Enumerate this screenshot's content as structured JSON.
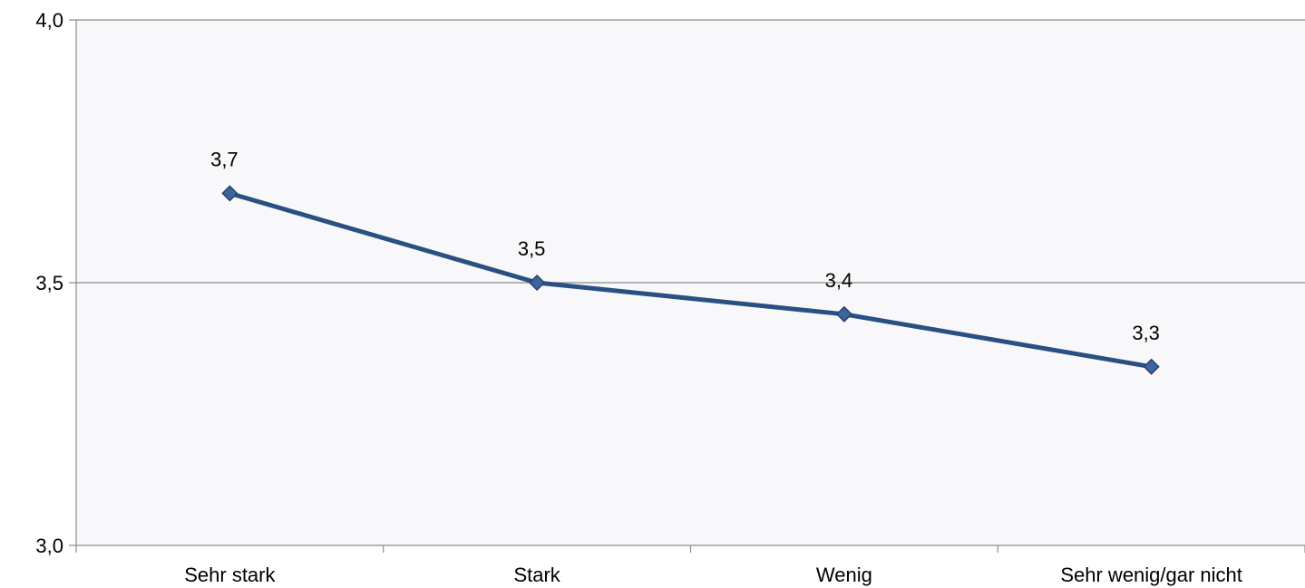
{
  "chart_data": {
    "type": "line",
    "categories": [
      "Sehr stark",
      "Stark",
      "Wenig",
      "Sehr wenig/gar nicht"
    ],
    "series": [
      {
        "values": [
          3.67,
          3.5,
          3.44,
          3.34
        ],
        "labels": [
          "3,7",
          "3,5",
          "3,4",
          "3,3"
        ]
      }
    ],
    "title": "",
    "xlabel": "",
    "ylabel": "",
    "ylim": [
      3.0,
      4.0
    ],
    "yticks": [
      3.0,
      3.5,
      4.0
    ],
    "ytick_labels": [
      "3,0",
      "3,5",
      "4,0"
    ],
    "grid": true,
    "legend": "none",
    "colors": {
      "line": "#2A4F82",
      "marker_fill": "#3E659B",
      "marker_stroke": "#22446F",
      "plot_background": "#F8F8FB",
      "gridline": "#8C8C8C",
      "axis": "#8C8C8C"
    }
  }
}
